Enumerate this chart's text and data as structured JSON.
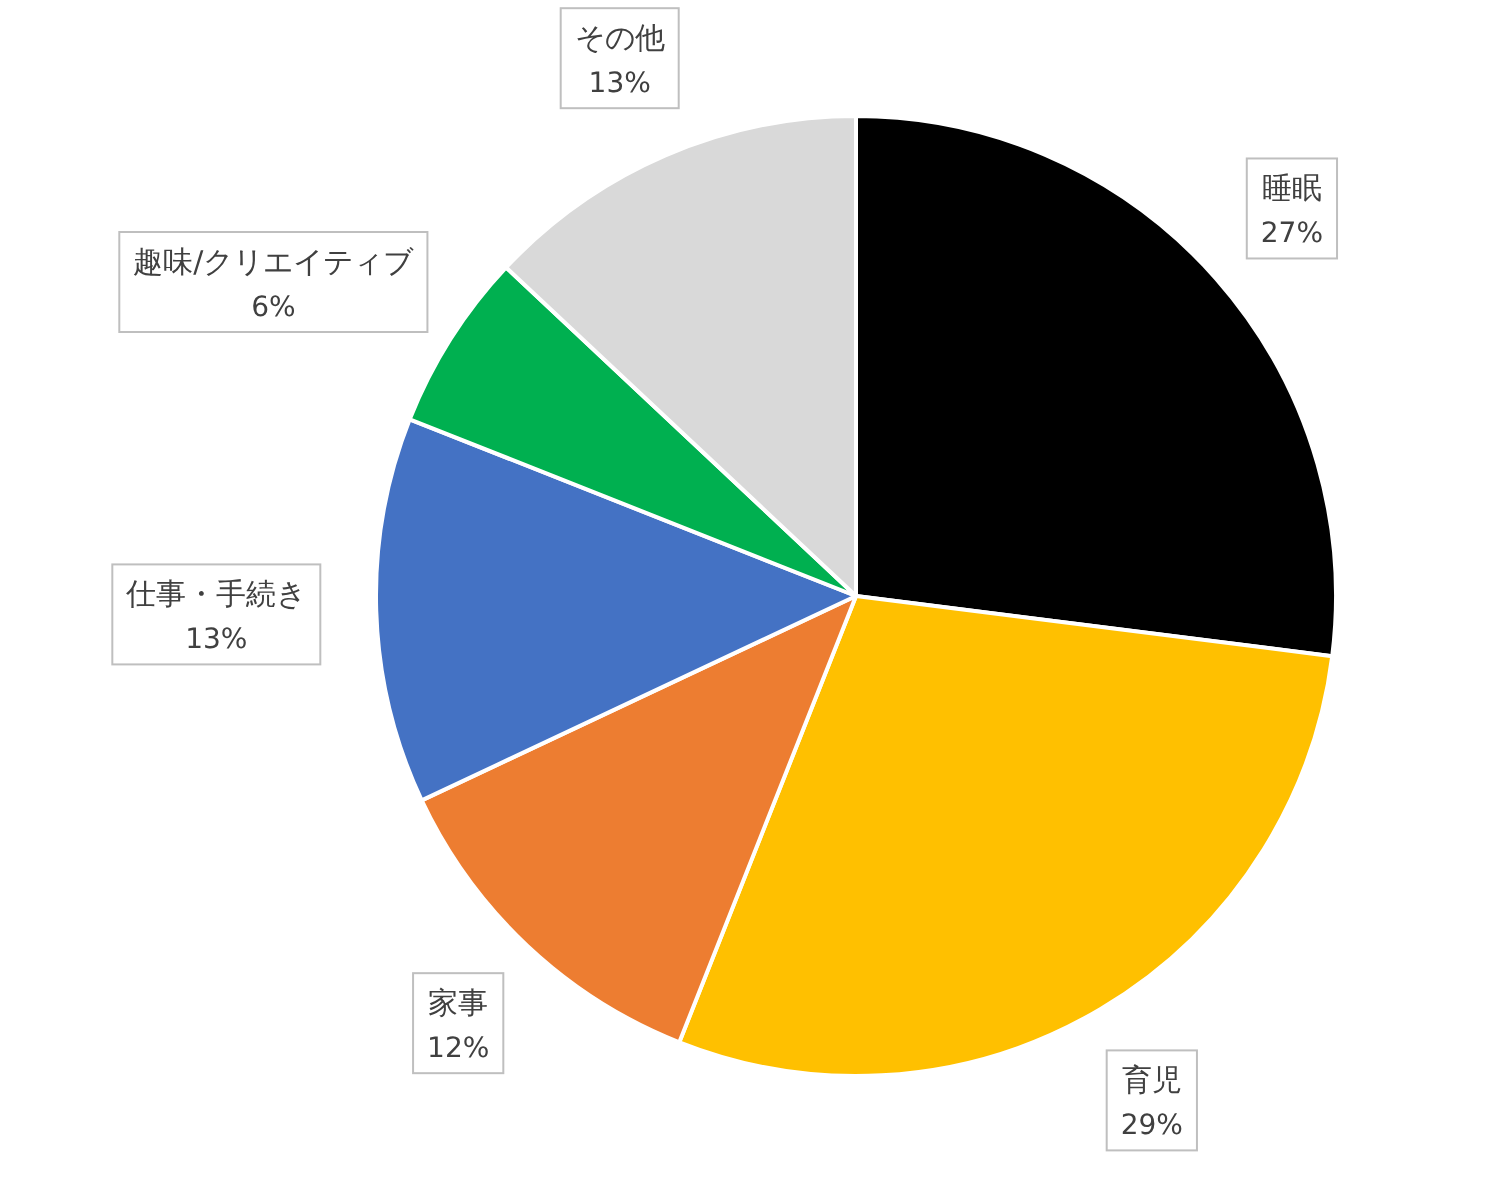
{
  "chart_data": {
    "type": "pie",
    "categories": [
      "睡眠",
      "育児",
      "家事",
      "仕事・手続き",
      "趣味/クリエイティブ",
      "その他"
    ],
    "values": [
      27,
      29,
      12,
      13,
      6,
      13
    ],
    "value_labels": [
      "27%",
      "29%",
      "12%",
      "13%",
      "6%",
      "13%"
    ],
    "colors": [
      "#000000",
      "#ffc000",
      "#ed7d31",
      "#4472c4",
      "#00b050",
      "#d9d9d9"
    ]
  }
}
